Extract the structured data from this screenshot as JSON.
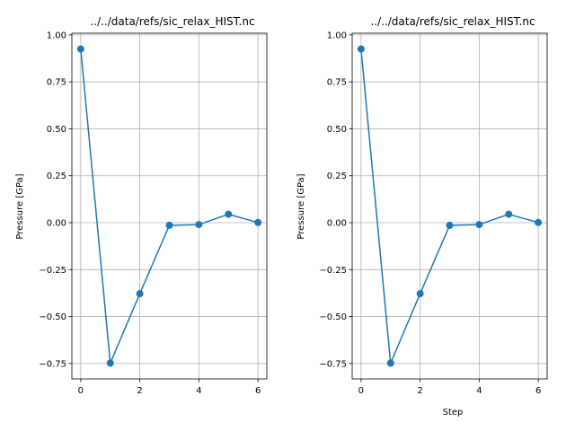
{
  "chart_data": [
    {
      "type": "line",
      "title": "../../data/refs/sic_relax_HIST.nc",
      "xlabel": "",
      "ylabel": "Pressure [GPa]",
      "x": [
        0,
        1,
        2,
        3,
        4,
        5,
        6
      ],
      "series": [
        {
          "values": [
            0.925,
            -0.748,
            -0.378,
            -0.014,
            -0.01,
            0.045,
            0.001
          ],
          "color": "#1f77b4"
        }
      ],
      "xticks": [
        "0",
        "2",
        "4",
        "6"
      ],
      "yticks": [
        "−0.75",
        "−0.50",
        "−0.25",
        "0.00",
        "0.25",
        "0.50",
        "0.75",
        "1.00"
      ],
      "xlim": [
        -0.3,
        6.3
      ],
      "ylim": [
        -0.832,
        1.009
      ],
      "grid": true,
      "marker": "circle"
    },
    {
      "type": "line",
      "title": "../../data/refs/sic_relax_HIST.nc",
      "xlabel": "Step",
      "ylabel": "Pressure [GPa]",
      "x": [
        0,
        1,
        2,
        3,
        4,
        5,
        6
      ],
      "series": [
        {
          "values": [
            0.925,
            -0.748,
            -0.378,
            -0.014,
            -0.01,
            0.045,
            0.001
          ],
          "color": "#1f77b4"
        }
      ],
      "xticks": [
        "0",
        "2",
        "4",
        "6"
      ],
      "yticks": [
        "−0.75",
        "−0.50",
        "−0.25",
        "0.00",
        "0.25",
        "0.50",
        "0.75",
        "1.00"
      ],
      "xlim": [
        -0.3,
        6.3
      ],
      "ylim": [
        -0.832,
        1.009
      ],
      "grid": true,
      "marker": "circle"
    }
  ]
}
